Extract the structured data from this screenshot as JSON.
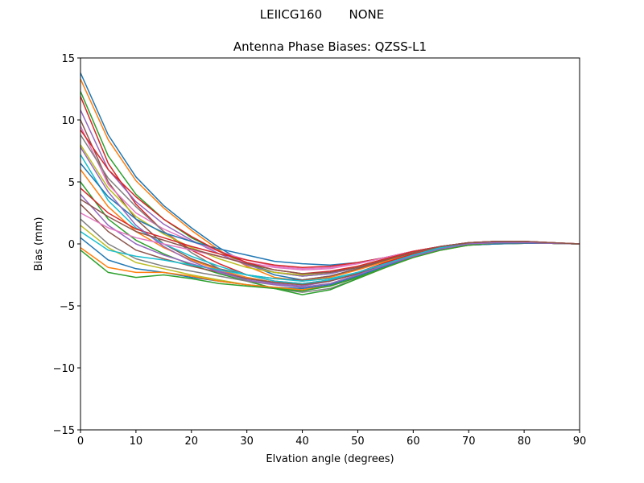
{
  "chart_data": {
    "type": "line",
    "suptitle": "LEIICG160       NONE",
    "title": "Antenna Phase Biases: QZSS-L1",
    "xlabel": "Elvation angle (degrees)",
    "ylabel": "Bias (mm)",
    "xlim": [
      0,
      90
    ],
    "ylim": [
      -15,
      15
    ],
    "xticks": [
      "0",
      "10",
      "20",
      "30",
      "40",
      "50",
      "60",
      "70",
      "80",
      "90"
    ],
    "yticks": [
      "−15",
      "−10",
      "−5",
      "0",
      "5",
      "10",
      "15"
    ],
    "grid": false,
    "colors": [
      "#1f77b4",
      "#ff7f0e",
      "#2ca02c",
      "#d62728",
      "#9467bd",
      "#8c564b",
      "#e377c2",
      "#7f7f7f",
      "#bcbd22",
      "#17becf"
    ],
    "x": [
      0,
      5,
      10,
      15,
      20,
      25,
      30,
      35,
      40,
      45,
      50,
      55,
      60,
      65,
      70,
      75,
      80,
      85,
      90
    ],
    "series": [
      {
        "values": [
          13.8,
          8.8,
          5.4,
          3.1,
          1.3,
          -0.3,
          -1.6,
          -2.5,
          -2.9,
          -2.6,
          -2.0,
          -1.4,
          -0.8,
          -0.3,
          0.0,
          0.1,
          0.1,
          0.05,
          0
        ]
      },
      {
        "values": [
          13.3,
          8.4,
          5.1,
          2.9,
          1.1,
          -0.5,
          -1.8,
          -2.7,
          -3.0,
          -2.7,
          -2.1,
          -1.4,
          -0.8,
          -0.3,
          0.0,
          0.1,
          0.1,
          0.05,
          0
        ]
      },
      {
        "values": [
          12.3,
          7.1,
          4.0,
          2.0,
          0.5,
          -0.6,
          -1.6,
          -2.3,
          -2.6,
          -2.4,
          -1.9,
          -1.3,
          -0.7,
          -0.2,
          0.1,
          0.2,
          0.15,
          0.05,
          0
        ]
      },
      {
        "values": [
          11.9,
          6.5,
          3.2,
          1.0,
          -0.5,
          -1.6,
          -2.5,
          -3.0,
          -3.2,
          -2.9,
          -2.3,
          -1.5,
          -0.8,
          -0.3,
          0.0,
          0.1,
          0.1,
          0.05,
          0
        ]
      },
      {
        "values": [
          10.8,
          6.0,
          3.4,
          1.6,
          0.3,
          -0.8,
          -1.7,
          -2.3,
          -2.6,
          -2.4,
          -1.9,
          -1.3,
          -0.7,
          -0.2,
          0.1,
          0.2,
          0.2,
          0.1,
          0
        ]
      },
      {
        "values": [
          10.0,
          5.0,
          2.0,
          0.0,
          -1.2,
          -2.0,
          -2.5,
          -2.8,
          -2.9,
          -2.6,
          -2.0,
          -1.3,
          -0.7,
          -0.2,
          0.1,
          0.2,
          0.15,
          0.05,
          0
        ]
      },
      {
        "values": [
          9.5,
          4.8,
          2.5,
          1.2,
          0.2,
          -0.6,
          -1.3,
          -1.8,
          -2.0,
          -1.9,
          -1.6,
          -1.1,
          -0.6,
          -0.2,
          0.1,
          0.2,
          0.15,
          0.05,
          0
        ]
      },
      {
        "values": [
          8.8,
          5.3,
          3.0,
          1.0,
          -0.7,
          -2.0,
          -3.0,
          -3.6,
          -3.9,
          -3.6,
          -2.8,
          -1.9,
          -1.0,
          -0.4,
          -0.1,
          0.0,
          0.05,
          0.05,
          0
        ]
      },
      {
        "values": [
          8.0,
          4.5,
          2.2,
          0.8,
          -0.3,
          -1.2,
          -1.9,
          -2.3,
          -2.5,
          -2.3,
          -1.8,
          -1.2,
          -0.7,
          -0.2,
          0.1,
          0.2,
          0.2,
          0.1,
          0
        ]
      },
      {
        "values": [
          7.2,
          3.5,
          1.3,
          0.0,
          -1.0,
          -1.8,
          -2.5,
          -3.0,
          -3.2,
          -2.9,
          -2.3,
          -1.6,
          -0.9,
          -0.4,
          0.0,
          0.1,
          0.1,
          0.05,
          0
        ]
      },
      {
        "values": [
          6.5,
          3.8,
          2.0,
          0.9,
          0.2,
          -0.4,
          -0.9,
          -1.4,
          -1.6,
          -1.7,
          -1.5,
          -1.1,
          -0.6,
          -0.2,
          0.1,
          0.2,
          0.2,
          0.1,
          0
        ]
      },
      {
        "values": [
          6.0,
          3.0,
          1.0,
          -0.3,
          -1.3,
          -2.1,
          -2.7,
          -3.1,
          -3.3,
          -3.0,
          -2.4,
          -1.6,
          -0.9,
          -0.3,
          0.0,
          0.1,
          0.1,
          0.05,
          0
        ]
      },
      {
        "values": [
          5.0,
          2.0,
          0.3,
          -0.8,
          -1.7,
          -2.4,
          -3.0,
          -3.6,
          -4.1,
          -3.7,
          -2.8,
          -1.9,
          -1.0,
          -0.4,
          -0.1,
          0.0,
          0.05,
          0.05,
          0
        ]
      },
      {
        "values": [
          4.5,
          2.5,
          1.2,
          0.5,
          -0.2,
          -0.8,
          -1.3,
          -1.7,
          -1.9,
          -1.8,
          -1.5,
          -1.1,
          -0.6,
          -0.2,
          0.1,
          0.2,
          0.2,
          0.1,
          0
        ]
      },
      {
        "values": [
          4.0,
          1.5,
          0.0,
          -0.9,
          -1.6,
          -2.2,
          -2.8,
          -3.2,
          -3.4,
          -3.0,
          -2.4,
          -1.6,
          -0.9,
          -0.3,
          0.0,
          0.1,
          0.1,
          0.05,
          0
        ]
      },
      {
        "values": [
          3.2,
          1.0,
          -0.5,
          -1.2,
          -1.8,
          -2.3,
          -2.8,
          -3.1,
          -3.3,
          -3.0,
          -2.4,
          -1.6,
          -0.9,
          -0.3,
          0.0,
          0.1,
          0.1,
          0.05,
          0
        ]
      },
      {
        "values": [
          2.5,
          1.3,
          0.5,
          0.0,
          -0.5,
          -1.0,
          -1.5,
          -1.9,
          -2.1,
          -2.0,
          -1.6,
          -1.1,
          -0.6,
          -0.2,
          0.1,
          0.2,
          0.2,
          0.1,
          0
        ]
      },
      {
        "values": [
          2.0,
          0.0,
          -1.2,
          -1.8,
          -2.2,
          -2.6,
          -3.0,
          -3.3,
          -3.5,
          -3.2,
          -2.5,
          -1.7,
          -0.9,
          -0.3,
          0.0,
          0.1,
          0.1,
          0.05,
          0
        ]
      },
      {
        "values": [
          1.5,
          -0.3,
          -1.5,
          -2.0,
          -2.5,
          -2.9,
          -3.3,
          -3.6,
          -3.7,
          -3.3,
          -2.6,
          -1.8,
          -1.0,
          -0.4,
          -0.1,
          0.0,
          0.05,
          0.05,
          0
        ]
      },
      {
        "values": [
          1.0,
          -0.5,
          -1.0,
          -1.3,
          -1.7,
          -2.1,
          -2.5,
          -2.8,
          -3.0,
          -2.8,
          -2.3,
          -1.6,
          -0.9,
          -0.3,
          0.0,
          0.1,
          0.1,
          0.05,
          0
        ]
      },
      {
        "values": [
          0.5,
          -1.3,
          -2.0,
          -2.3,
          -2.7,
          -3.0,
          -3.3,
          -3.5,
          -3.6,
          -3.3,
          -2.6,
          -1.8,
          -1.0,
          -0.4,
          -0.1,
          0.0,
          0.05,
          0.05,
          0
        ]
      },
      {
        "values": [
          -0.3,
          -1.9,
          -2.3,
          -2.3,
          -2.6,
          -3.0,
          -3.3,
          -3.5,
          -3.7,
          -3.4,
          -2.7,
          -1.9,
          -1.1,
          -0.5,
          -0.1,
          0.1,
          0.1,
          0.05,
          0
        ]
      },
      {
        "values": [
          -0.5,
          -2.3,
          -2.7,
          -2.5,
          -2.8,
          -3.2,
          -3.4,
          -3.6,
          -3.8,
          -3.4,
          -2.7,
          -1.9,
          -1.1,
          -0.5,
          -0.1,
          0.1,
          0.1,
          0.05,
          0
        ]
      },
      {
        "values": [
          9.2,
          6.0,
          3.8,
          2.0,
          0.6,
          -0.6,
          -1.5,
          -2.1,
          -2.4,
          -2.2,
          -1.8,
          -1.2,
          -0.6,
          -0.2,
          0.1,
          0.2,
          0.2,
          0.1,
          0
        ]
      },
      {
        "values": [
          7.8,
          4.2,
          1.5,
          -0.2,
          -1.4,
          -2.3,
          -2.9,
          -3.3,
          -3.5,
          -3.2,
          -2.5,
          -1.7,
          -1.0,
          -0.4,
          0.0,
          0.1,
          0.1,
          0.05,
          0
        ]
      },
      {
        "values": [
          3.6,
          2.2,
          1.0,
          0.3,
          -0.4,
          -1.0,
          -1.6,
          -2.1,
          -2.4,
          -2.3,
          -1.9,
          -1.3,
          -0.7,
          -0.2,
          0.1,
          0.2,
          0.2,
          0.1,
          0
        ]
      }
    ]
  }
}
